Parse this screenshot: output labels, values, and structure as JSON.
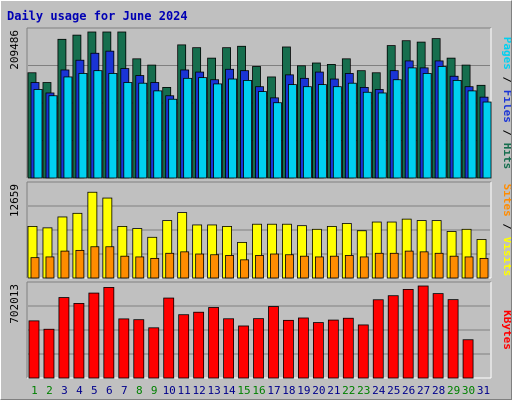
{
  "title": "Daily usage for June 2024",
  "colors": {
    "hits": "#166e4e",
    "files": "#1a34d6",
    "pages": "#00d0f0",
    "visits": "#ffff00",
    "sites": "#ff8c00",
    "kbytes": "#ff0000",
    "weekend_day": "#008000",
    "weekday": "#00008b"
  },
  "chart_data": [
    {
      "type": "bar",
      "title": "Daily usage for June 2024",
      "categories": [
        "1",
        "2",
        "3",
        "4",
        "5",
        "6",
        "7",
        "8",
        "9",
        "10",
        "11",
        "12",
        "13",
        "14",
        "15",
        "16",
        "17",
        "18",
        "19",
        "20",
        "21",
        "22",
        "23",
        "24",
        "25",
        "26",
        "27",
        "28",
        "29",
        "30",
        "31"
      ],
      "weekend_days": [
        "1",
        "2",
        "8",
        "9",
        "15",
        "16",
        "22",
        "23",
        "29",
        "30"
      ],
      "ymax_label": "209486",
      "ylim": [
        0,
        209486
      ],
      "legend": [
        "Pages",
        "Files",
        "Hits"
      ],
      "series": [
        {
          "name": "Hits",
          "values": [
            151000,
            137000,
            199000,
            205000,
            209486,
            209486,
            209486,
            171000,
            162000,
            130000,
            191000,
            187000,
            172000,
            187000,
            189000,
            160000,
            145000,
            188000,
            161000,
            165000,
            163000,
            171000,
            154000,
            151000,
            190000,
            197000,
            195000,
            200000,
            172000,
            162000,
            133000
          ]
        },
        {
          "name": "Files",
          "values": [
            137000,
            122000,
            155000,
            169000,
            179000,
            182000,
            157000,
            147000,
            137000,
            118000,
            155000,
            152000,
            141000,
            156000,
            154000,
            131000,
            115000,
            148000,
            143000,
            152000,
            142000,
            150000,
            130000,
            127000,
            154000,
            168000,
            158000,
            168000,
            146000,
            131000,
            116000
          ]
        },
        {
          "name": "Pages",
          "values": [
            127000,
            118000,
            145000,
            150000,
            154000,
            150000,
            137000,
            136000,
            125000,
            113000,
            143000,
            144000,
            135000,
            142000,
            140000,
            124000,
            108000,
            134000,
            131000,
            134000,
            131000,
            136000,
            123000,
            122000,
            141000,
            158000,
            150000,
            160000,
            140000,
            125000,
            109000
          ]
        }
      ]
    },
    {
      "type": "bar",
      "categories": [
        "1",
        "2",
        "3",
        "4",
        "5",
        "6",
        "7",
        "8",
        "9",
        "10",
        "11",
        "12",
        "13",
        "14",
        "15",
        "16",
        "17",
        "18",
        "19",
        "20",
        "21",
        "22",
        "23",
        "24",
        "25",
        "26",
        "27",
        "28",
        "29",
        "30",
        "31"
      ],
      "ymax_label": "12659",
      "ylim": [
        0,
        12659
      ],
      "legend": [
        "Sites",
        "Visits"
      ],
      "series": [
        {
          "name": "Visits",
          "values": [
            7100,
            6900,
            8400,
            8900,
            11800,
            11000,
            7100,
            6800,
            5600,
            7900,
            9000,
            7300,
            7300,
            7100,
            4900,
            7400,
            7400,
            7400,
            7200,
            6700,
            7100,
            7500,
            6500,
            7700,
            7700,
            8100,
            7900,
            7900,
            6400,
            6700,
            5300
          ]
        },
        {
          "name": "Sites",
          "values": [
            2800,
            2900,
            3700,
            3800,
            4300,
            4300,
            3000,
            2900,
            2700,
            3400,
            3600,
            3300,
            3200,
            3100,
            2500,
            3100,
            3300,
            3200,
            3000,
            2900,
            3000,
            3100,
            2900,
            3400,
            3400,
            3700,
            3600,
            3400,
            3000,
            2900,
            2700
          ]
        }
      ]
    },
    {
      "type": "bar",
      "categories": [
        "1",
        "2",
        "3",
        "4",
        "5",
        "6",
        "7",
        "8",
        "9",
        "10",
        "11",
        "12",
        "13",
        "14",
        "15",
        "16",
        "17",
        "18",
        "19",
        "20",
        "21",
        "22",
        "23",
        "24",
        "25",
        "26",
        "27",
        "28",
        "29",
        "30",
        "31"
      ],
      "ymax_label": "702013",
      "ylim": [
        0,
        702013
      ],
      "legend": [
        "KBytes"
      ],
      "series": [
        {
          "name": "KBytes",
          "values": [
            436000,
            372000,
            614000,
            569000,
            648000,
            691000,
            451000,
            445000,
            383000,
            610000,
            483000,
            502000,
            538000,
            452000,
            397000,
            453000,
            545000,
            440000,
            458000,
            423000,
            442000,
            456000,
            405000,
            597000,
            628000,
            676000,
            702013,
            644000,
            598000,
            292000,
            0
          ]
        }
      ]
    }
  ]
}
